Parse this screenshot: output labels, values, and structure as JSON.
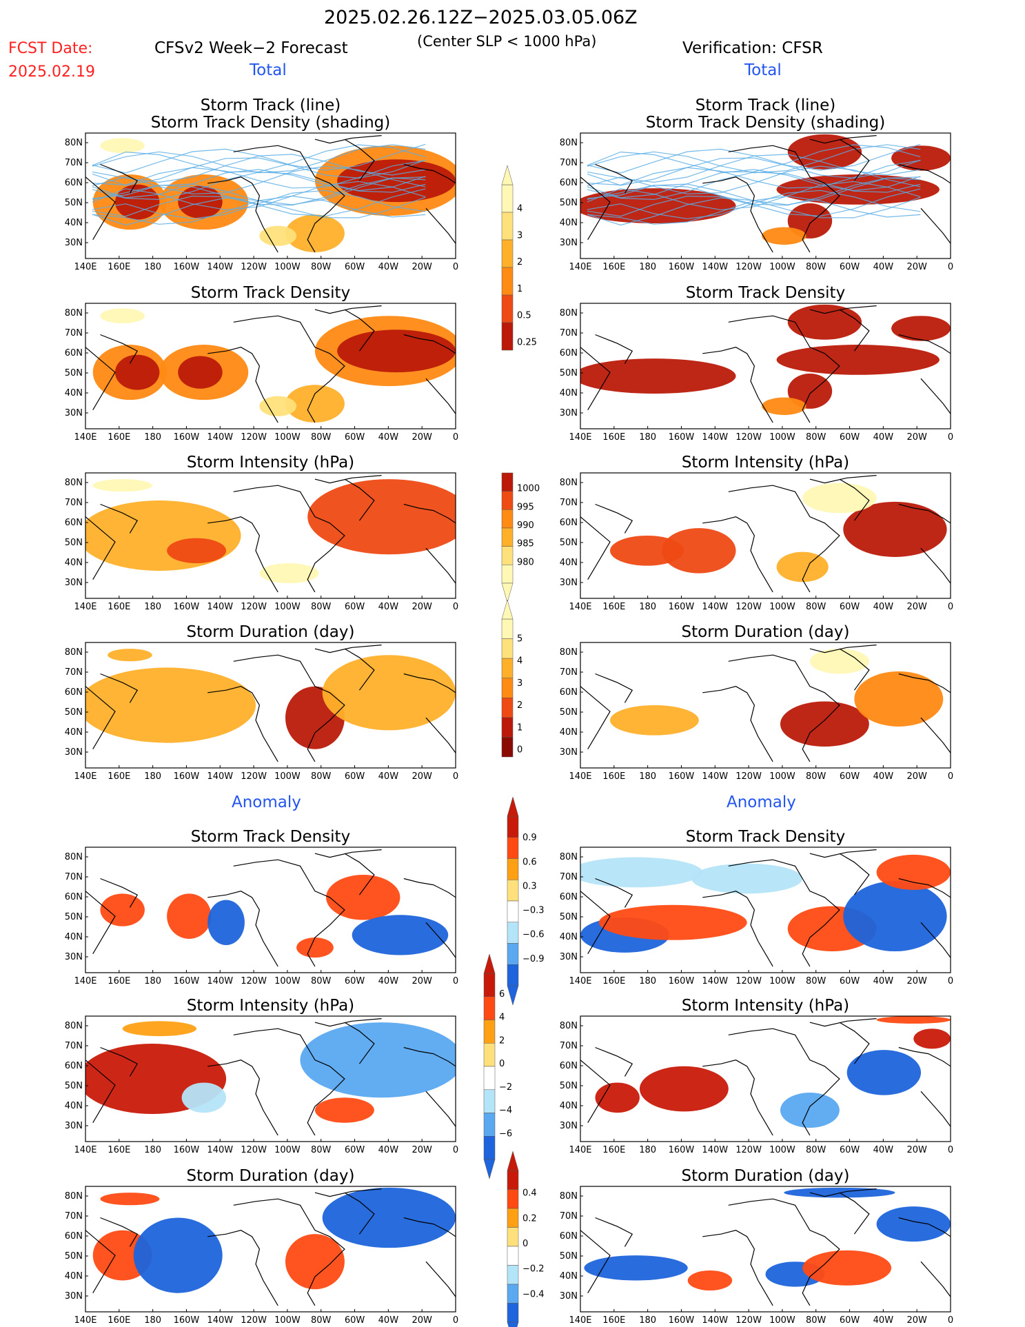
{
  "header": {
    "fcst_label": "FCST Date:",
    "fcst_date": "2025.02.19",
    "period": "2025.02.26.12Z−2025.03.05.06Z",
    "condition": "(Center SLP < 1000 hPa)",
    "left_title": "CFSv2 Week−2 Forecast",
    "right_title": "Verification: CFSR",
    "total_label": "Total",
    "anomaly_label": "Anomaly"
  },
  "colors": {
    "header_red": "#ff2020",
    "section_blue": "#2255ee",
    "track_line": "#5aaee6",
    "map_line": "#000000",
    "palette_total": [
      "#fff8b4",
      "#ffe07a",
      "#ffb02a",
      "#ff8a14",
      "#ee4a14",
      "#bb1a0a",
      "#8a0a06"
    ],
    "palette_anom": [
      "#1e64dc",
      "#5aa8f0",
      "#b4e4f8",
      "#ffffff",
      "#ffe07a",
      "#ffa014",
      "#ff4a14",
      "#c81a0a"
    ]
  },
  "map": {
    "lon_labels": [
      "140E",
      "160E",
      "180",
      "160W",
      "140W",
      "120W",
      "100W",
      "80W",
      "60W",
      "40W",
      "20W",
      "0"
    ],
    "lat_labels": [
      "80N",
      "70N",
      "60N",
      "50N",
      "40N",
      "30N"
    ]
  },
  "colorbars": [
    {
      "id": "density",
      "ticks": [
        "4",
        "3",
        "2",
        "1",
        "0.5",
        "0.25"
      ]
    },
    {
      "id": "intensity",
      "ticks": [
        "1000",
        "995",
        "990",
        "985",
        "980"
      ]
    },
    {
      "id": "duration",
      "ticks": [
        "5",
        "4",
        "3",
        "2",
        "1",
        "0"
      ]
    },
    {
      "id": "anom_density",
      "ticks": [
        "0.9",
        "0.6",
        "0.3",
        "−0.3",
        "−0.6",
        "−0.9"
      ]
    },
    {
      "id": "anom_intensity",
      "ticks": [
        "6",
        "4",
        "2",
        "0",
        "−2",
        "−4",
        "−6"
      ]
    },
    {
      "id": "anom_duration",
      "ticks": [
        "0.4",
        "0.2",
        "0",
        "−0.2",
        "−0.4"
      ]
    }
  ],
  "chart_data": [
    {
      "type": "heatmap",
      "side": "forecast",
      "title": "Storm Track (line)",
      "subtitle": "Storm Track Density (shading)",
      "field": "Storm Track Density",
      "lines": "Storm Track"
    },
    {
      "type": "heatmap",
      "side": "verification",
      "title": "Storm Track (line)",
      "subtitle": "Storm Track Density (shading)",
      "field": "Storm Track Density",
      "lines": "Storm Track"
    },
    {
      "type": "heatmap",
      "side": "forecast",
      "title": "Storm Track Density",
      "field": "Storm Track Density"
    },
    {
      "type": "heatmap",
      "side": "verification",
      "title": "Storm Track Density",
      "field": "Storm Track Density"
    },
    {
      "type": "heatmap",
      "side": "forecast",
      "title": "Storm Intensity (hPa)",
      "field": "Storm Intensity"
    },
    {
      "type": "heatmap",
      "side": "verification",
      "title": "Storm Intensity (hPa)",
      "field": "Storm Intensity"
    },
    {
      "type": "heatmap",
      "side": "forecast",
      "title": "Storm Duration (day)",
      "field": "Storm Duration"
    },
    {
      "type": "heatmap",
      "side": "verification",
      "title": "Storm Duration (day)",
      "field": "Storm Duration"
    },
    {
      "type": "heatmap",
      "side": "forecast",
      "title": "Storm Track Density",
      "field": "Storm Track Density Anomaly"
    },
    {
      "type": "heatmap",
      "side": "verification",
      "title": "Storm Track Density",
      "field": "Storm Track Density Anomaly"
    },
    {
      "type": "heatmap",
      "side": "forecast",
      "title": "Storm Intensity (hPa)",
      "field": "Storm Intensity Anomaly"
    },
    {
      "type": "heatmap",
      "side": "verification",
      "title": "Storm Intensity (hPa)",
      "field": "Storm Intensity Anomaly"
    },
    {
      "type": "heatmap",
      "side": "forecast",
      "title": "Storm Duration (day)",
      "field": "Storm Duration Anomaly"
    },
    {
      "type": "heatmap",
      "side": "verification",
      "title": "Storm Duration (day)",
      "field": "Storm Duration Anomaly"
    }
  ]
}
